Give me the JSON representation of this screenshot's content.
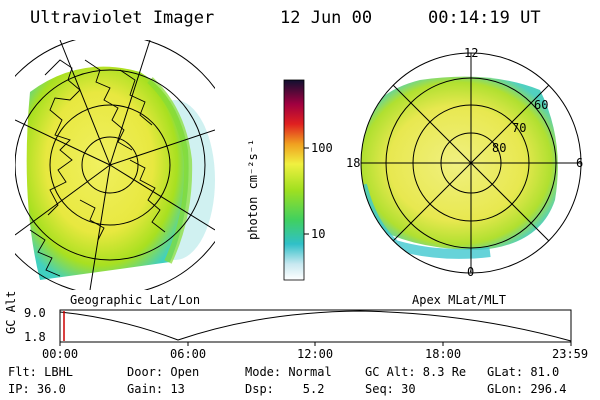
{
  "header": {
    "title": "Ultraviolet Imager",
    "date": "12 Jun 00",
    "time": "00:14:19 UT"
  },
  "left_panel": {
    "caption": "Geographic Lat/Lon"
  },
  "right_panel": {
    "caption": "Apex MLat/MLT",
    "mlt_labels": {
      "top": "12",
      "left": "18",
      "right": "6",
      "bottom": "0"
    },
    "mlat_labels": [
      "60",
      "70",
      "80"
    ]
  },
  "colorbar": {
    "unit_label": "photon cm⁻²s⁻¹",
    "ticks": [
      "100",
      "10"
    ]
  },
  "altitude_plot": {
    "axis_label": "GC Alt",
    "y_ticks": [
      "9.0",
      "1.8"
    ],
    "x_ticks": [
      "00:00",
      "06:00",
      "12:00",
      "18:00",
      "23:59"
    ]
  },
  "status": {
    "row1": {
      "flt": "Flt: LBHL",
      "door": "Door: Open",
      "mode": "Mode: Normal",
      "gc_alt": "GC Alt: 8.3 Re",
      "glat": "GLat: 81.0"
    },
    "row2": {
      "ip": "IP: 36.0",
      "gain": "Gain: 13",
      "dsp": "Dsp:    5.2",
      "seq": "Seq: 30",
      "glon": "GLon: 296.4"
    }
  },
  "colors": {
    "aurora_bright": "#e8e840",
    "aurora_mid": "#a8e020",
    "aurora_low": "#40d0d0",
    "marker": "#cc0000"
  }
}
